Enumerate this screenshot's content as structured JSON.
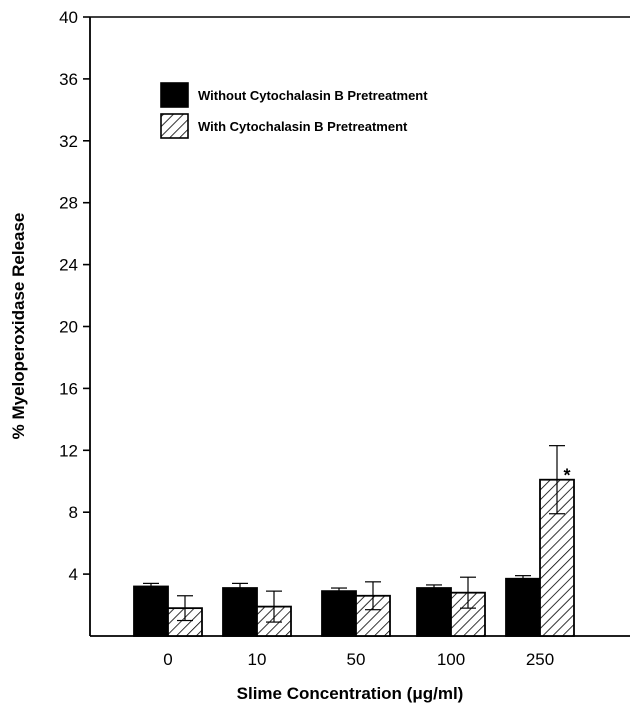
{
  "chart_data": {
    "type": "bar",
    "title": "",
    "xlabel": "Slime Concentration (μg/ml)",
    "ylabel": "% Myeloperoxidase Release",
    "ylim": [
      0,
      40
    ],
    "yticks": [
      4,
      8,
      12,
      16,
      20,
      24,
      28,
      32,
      36,
      40
    ],
    "categories": [
      "0",
      "10",
      "50",
      "100",
      "250"
    ],
    "series": [
      {
        "name": "Without Cytochalasin B Pretreatment",
        "values": [
          3.2,
          3.1,
          2.9,
          3.1,
          3.7
        ],
        "errors": [
          0.2,
          0.3,
          0.2,
          0.2,
          0.2
        ],
        "fill": "solid",
        "color": "#000000"
      },
      {
        "name": "With Cytochalasin B Pretreatment",
        "values": [
          1.8,
          1.9,
          2.6,
          2.8,
          10.1
        ],
        "errors": [
          0.8,
          1.0,
          0.9,
          1.0,
          2.2
        ],
        "fill": "hatched",
        "color": "#000000"
      }
    ],
    "annotations": [
      {
        "text": "*",
        "category": "250",
        "series": "With Cytochalasin B Pretreatment"
      }
    ],
    "legend": "top-left",
    "grid": false
  }
}
